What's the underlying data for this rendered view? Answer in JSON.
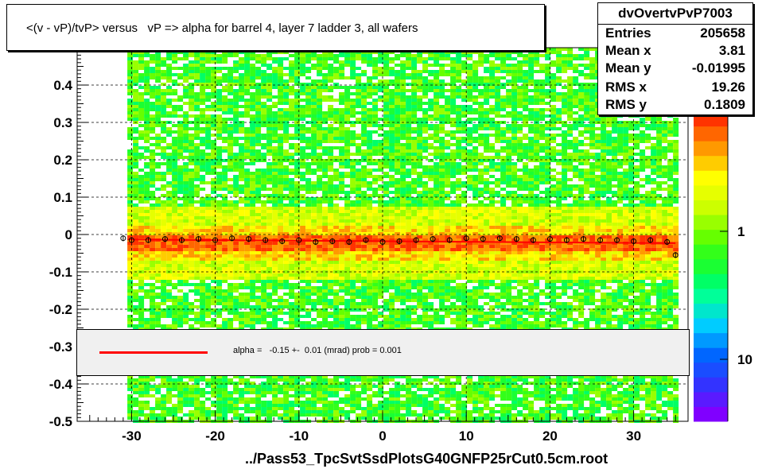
{
  "title": "<(v - vP)/tvP> versus   vP => alpha for barrel 4, layer 7 ladder 3, all wafers",
  "stats": {
    "name": "dvOvertvPvP7003",
    "rows": [
      {
        "label": "Entries",
        "value": "205658"
      },
      {
        "label": "Mean x",
        "value": "3.81"
      },
      {
        "label": "Mean y",
        "value": "-0.01995"
      },
      {
        "label": "RMS x",
        "value": "19.26"
      },
      {
        "label": "RMS y",
        "value": "0.1809"
      }
    ]
  },
  "fit": {
    "text": "alpha =   -0.15 +-  0.01 (mrad) prob = 0.001",
    "line_color": "#ff0000"
  },
  "colors": {
    "palette": [
      "#8000ff",
      "#5a1aff",
      "#3333ff",
      "#1a4dff",
      "#0066ff",
      "#0099ff",
      "#00ccff",
      "#00e6cc",
      "#00ff99",
      "#00ff66",
      "#1aff33",
      "#33ff1a",
      "#66ff00",
      "#99ff00",
      "#ccff00",
      "#e6ff00",
      "#ffff00",
      "#ffcc00",
      "#ff9900",
      "#ff6600",
      "#ff3300"
    ],
    "profile_marker": "#000000",
    "points_marker": "#ff3333"
  },
  "chart_data": {
    "type": "heatmap",
    "title": "<(v - vP)/tvP> versus   vP => alpha for barrel 4, layer 7 ladder 3, all wafers",
    "xlabel": "../Pass53_TpcSvtSsdPlotsG40GNFP25rCut0.5cm.root",
    "ylabel": "",
    "xlim": [
      -36.5,
      36.5
    ],
    "ylim": [
      -0.5,
      0.5
    ],
    "x_ticks": [
      "-30",
      "-20",
      "-10",
      "0",
      "10",
      "20",
      "30"
    ],
    "x_tick_values": [
      -30,
      -20,
      -10,
      0,
      10,
      20,
      30
    ],
    "y_ticks": [
      "-0.5",
      "-0.4",
      "-0.3",
      "-0.2",
      "-0.1",
      "0",
      "0.1",
      "0.2",
      "0.3",
      "0.4"
    ],
    "y_tick_values": [
      -0.5,
      -0.4,
      -0.3,
      -0.2,
      -0.1,
      0,
      0.1,
      0.2,
      0.3,
      0.4
    ],
    "colorbar_labels": [
      "1",
      "10"
    ],
    "grid": true,
    "fill_x_range": [
      -30.5,
      35
    ],
    "profile": {
      "x": [
        -31,
        -30,
        -28,
        -26,
        -24,
        -22,
        -20,
        -18,
        -16,
        -14,
        -12,
        -10,
        -8,
        -6,
        -4,
        -2,
        0,
        2,
        4,
        6,
        8,
        10,
        12,
        14,
        16,
        18,
        20,
        22,
        24,
        26,
        28,
        30,
        32,
        34,
        35
      ],
      "y": [
        -0.01,
        -0.015,
        -0.015,
        -0.012,
        -0.015,
        -0.012,
        -0.015,
        -0.01,
        -0.012,
        -0.015,
        -0.018,
        -0.015,
        -0.02,
        -0.018,
        -0.02,
        -0.015,
        -0.02,
        -0.018,
        -0.015,
        -0.012,
        -0.015,
        -0.01,
        -0.012,
        -0.01,
        -0.012,
        -0.015,
        -0.012,
        -0.015,
        -0.012,
        -0.015,
        -0.015,
        -0.018,
        -0.015,
        -0.02,
        -0.055
      ]
    },
    "fit_line": {
      "slope_mrad": -0.15,
      "intercept": -0.018
    }
  }
}
